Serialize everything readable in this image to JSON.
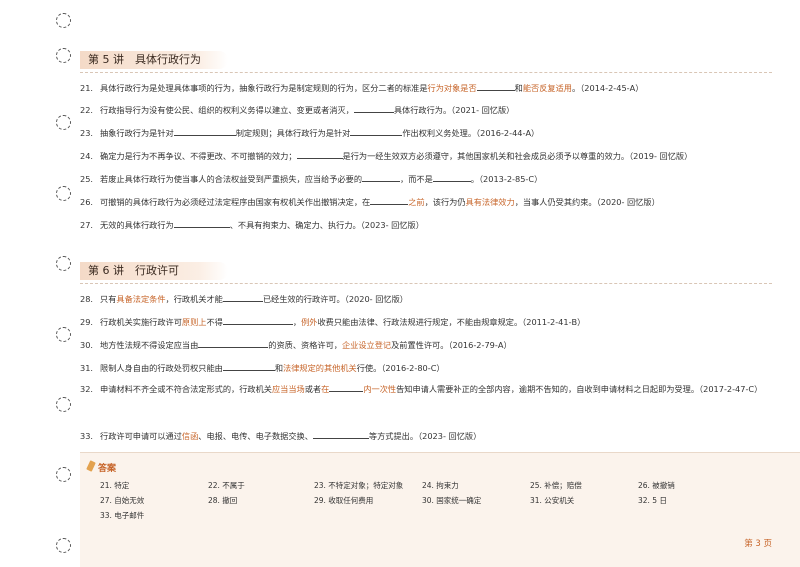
{
  "sections": [
    {
      "label": "第 5 讲　具体行政行为"
    },
    {
      "label": "第 6 讲　行政许可"
    }
  ],
  "questions": [
    {
      "num": "21.",
      "parts": [
        {
          "t": "具体行政行为是处理具体事项的行为，抽象行政行为是制定规则的行为，区分二者的标准是"
        },
        {
          "t": "行为对象是否",
          "hl": true
        },
        {
          "blank": 38
        },
        {
          "t": "和"
        },
        {
          "t": "能否反复适用",
          "hl": true
        },
        {
          "t": "。（2014-2-45-A）"
        }
      ]
    },
    {
      "num": "22.",
      "parts": [
        {
          "t": "行政指导行为没有使公民、组织的权利义务得以建立、变更或者消灭，"
        },
        {
          "blank": 40
        },
        {
          "t": "具体行政行为。（2021- 回忆版）"
        }
      ]
    },
    {
      "num": "23.",
      "parts": [
        {
          "t": "抽象行政行为是针对"
        },
        {
          "blank": 62
        },
        {
          "t": "制定规则；具体行政行为是针对"
        },
        {
          "blank": 52
        },
        {
          "t": "作出权利义务处理。（2016-2-44-A）"
        }
      ]
    },
    {
      "num": "24.",
      "parts": [
        {
          "t": "确定力是行为不再争议、不得更改、不可撤销的效力；"
        },
        {
          "blank": 46
        },
        {
          "t": "是行为一经生效双方必须遵守，其他国家机关和社会成员必须予以尊重的效力。（2019- 回忆版）"
        }
      ]
    },
    {
      "num": "25.",
      "parts": [
        {
          "t": "若废止具体行政行为使当事人的合法权益受到严重损失，应当给予必要的"
        },
        {
          "blank": 38
        },
        {
          "t": "，而不是"
        },
        {
          "blank": 38
        },
        {
          "t": "。（2013-2-85-C）"
        }
      ]
    },
    {
      "num": "26.",
      "parts": [
        {
          "t": "可撤销的具体行政行为必须经过法定程序由国家有权机关作出撤销决定，在"
        },
        {
          "blank": 38
        },
        {
          "t": "之前",
          "hl": true
        },
        {
          "t": "，该行为仍"
        },
        {
          "t": "具有法律效力",
          "hl": true
        },
        {
          "t": "，当事人仍受其约束。（2020- 回忆版）"
        }
      ]
    },
    {
      "num": "27.",
      "parts": [
        {
          "t": "无效的具体行政行为"
        },
        {
          "blank": 56
        },
        {
          "t": "、不具有拘束力、确定力、执行力。（2023- 回忆版）"
        }
      ]
    },
    {
      "num": "28.",
      "parts": [
        {
          "t": "只有"
        },
        {
          "t": "具备法定条件",
          "hl": true
        },
        {
          "t": "，行政机关才能"
        },
        {
          "blank": 40
        },
        {
          "t": "已经生效的行政许可。（2020- 回忆版）"
        }
      ]
    },
    {
      "num": "29.",
      "parts": [
        {
          "t": "行政机关实施行政许可"
        },
        {
          "t": "原则上",
          "hl": true
        },
        {
          "t": "不得"
        },
        {
          "blank": 70
        },
        {
          "t": "，"
        },
        {
          "t": "例外",
          "hl": true
        },
        {
          "t": "收费只能由法律、行政法规进行规定，不能由规章规定。（2011-2-41-B）"
        }
      ]
    },
    {
      "num": "30.",
      "parts": [
        {
          "t": "地方性法规不得设定应当由"
        },
        {
          "blank": 70
        },
        {
          "t": "的资质、资格许可，"
        },
        {
          "t": "企业设立登记",
          "hl": true
        },
        {
          "t": "及前置性许可。（2016-2-79-A）"
        }
      ]
    },
    {
      "num": "31.",
      "parts": [
        {
          "t": "限制人身自由的行政处罚权只能由"
        },
        {
          "blank": 52
        },
        {
          "t": "和"
        },
        {
          "t": "法律规定的其他机关",
          "hl": true
        },
        {
          "t": "行使。（2016-2-80-C）"
        }
      ]
    },
    {
      "num": "32.",
      "wrap": true,
      "parts": [
        {
          "t": "申请材料不齐全或不符合法定形式的，行政机关"
        },
        {
          "t": "应当当场",
          "hl": true
        },
        {
          "t": "或者"
        },
        {
          "t": "在",
          "hl": true
        },
        {
          "blank": 34
        },
        {
          "t": "内一次性",
          "hl": true
        },
        {
          "t": "告知申请人需要补正的全部内容，逾期不告知的，自收到申请材料之日起即为受理。（2017-2-47-C）"
        }
      ]
    },
    {
      "num": "33.",
      "parts": [
        {
          "t": "行政许可申请可以通过"
        },
        {
          "t": "信函",
          "hl": true
        },
        {
          "t": "、电报、电传、电子数据交换、"
        },
        {
          "blank": 56
        },
        {
          "t": "等方式提出。（2023- 回忆版）"
        }
      ]
    }
  ],
  "answers": {
    "title": "答案",
    "items": [
      "21. 特定",
      "22. 不属于",
      "23. 不特定对象；特定对象",
      "24. 拘束力",
      "25. 补偿；赔偿",
      "26. 被撤销",
      "27. 自始无效",
      "28. 撤回",
      "29. 收取任何费用",
      "30. 国家统一确定",
      "31. 公安机关",
      "32. 5 日",
      "33. 电子邮件"
    ]
  },
  "page_number": "第 3 页",
  "colors": {
    "accent": "#c7652a",
    "answer_bg": "#fbf3ec",
    "title_bg": "#f4dac7"
  }
}
